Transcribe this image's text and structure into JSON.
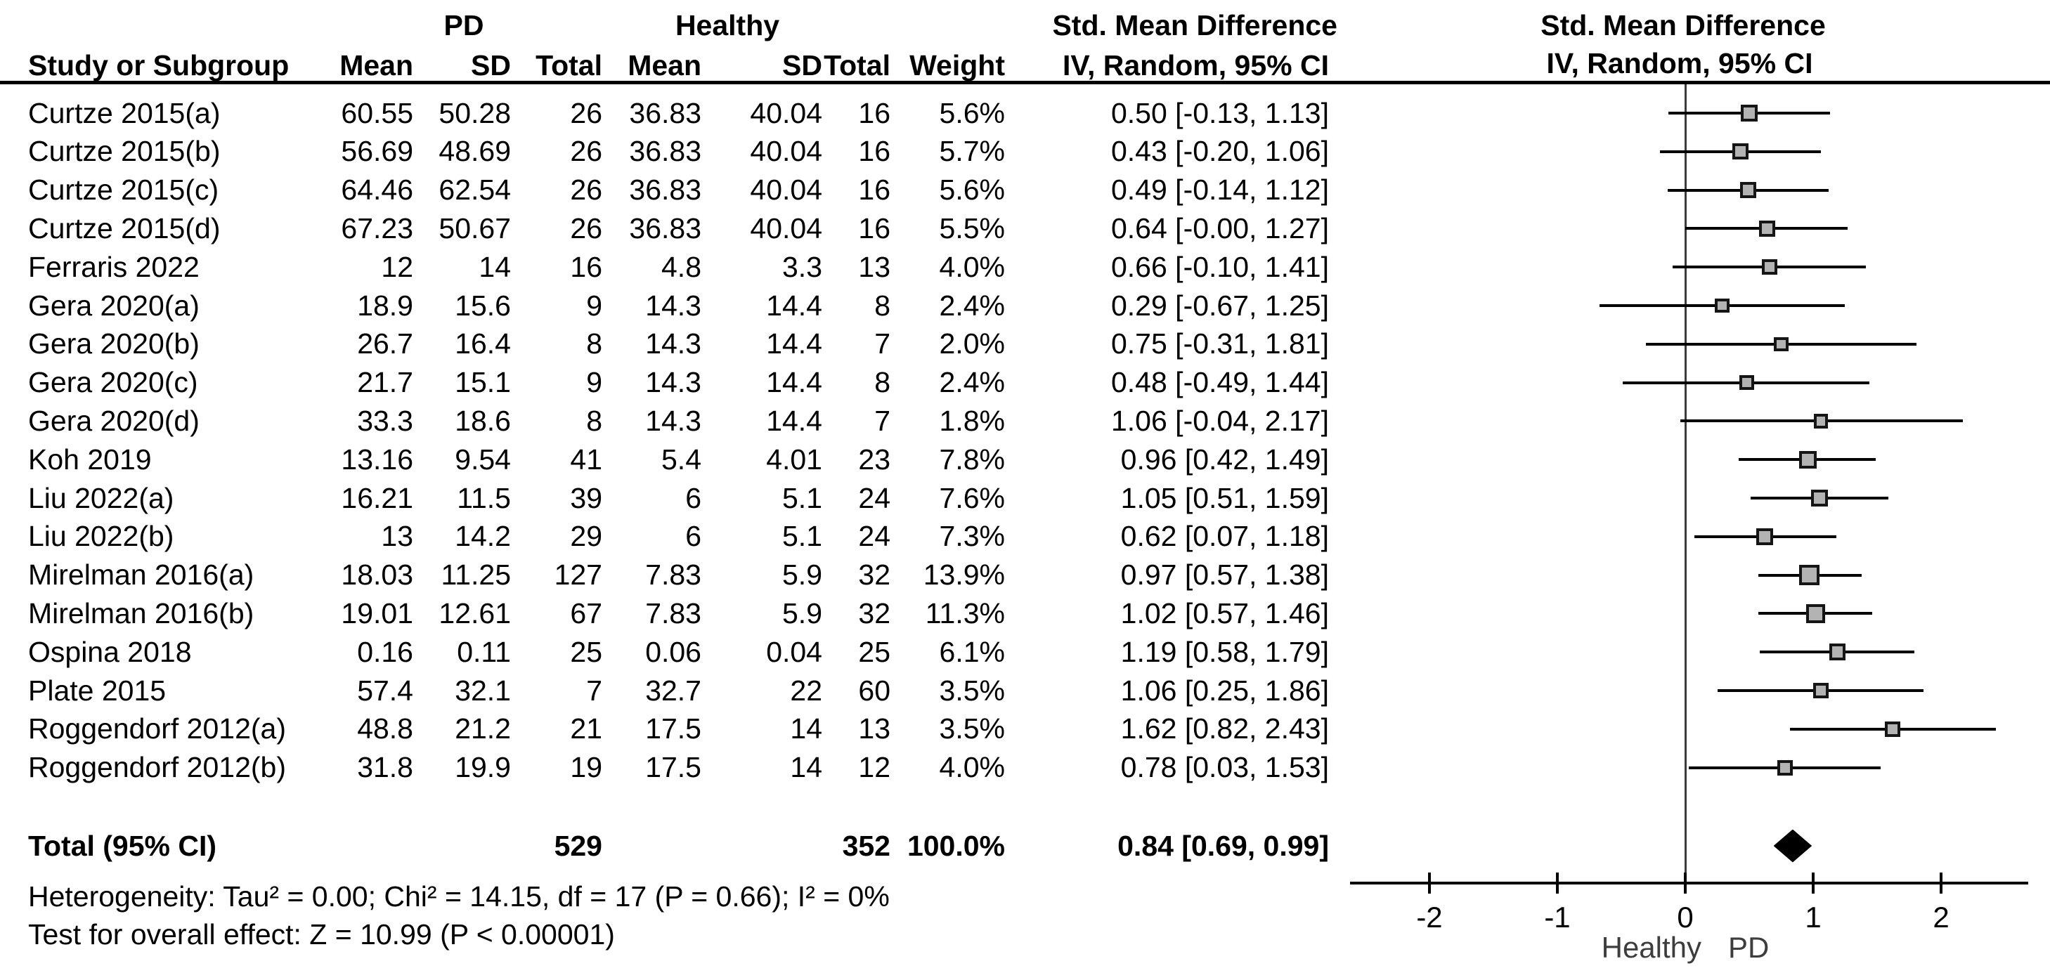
{
  "header": {
    "group_pd": "PD",
    "group_healthy": "Healthy",
    "smd_text_title": "Std. Mean Difference",
    "smd_text_sub": "IV, Random, 95% CI",
    "smd_plot_title": "Std. Mean Difference",
    "smd_plot_sub": "IV, Random, 95% CI",
    "col_study": "Study or Subgroup",
    "col_mean": "Mean",
    "col_sd": "SD",
    "col_total": "Total",
    "col_weight": "Weight"
  },
  "chart_data": {
    "type": "forest",
    "effect_measure": "Std. Mean Difference, IV, Random, 95% CI",
    "studies": [
      {
        "study": "Curtze 2015(a)",
        "pd_mean": "60.55",
        "pd_sd": "50.28",
        "pd_total": "26",
        "h_mean": "36.83",
        "h_sd": "40.04",
        "h_total": "16",
        "weight": "5.6%",
        "ci": "0.50 [-0.13, 1.13]",
        "smd": 0.5,
        "lo": -0.13,
        "hi": 1.13
      },
      {
        "study": "Curtze 2015(b)",
        "pd_mean": "56.69",
        "pd_sd": "48.69",
        "pd_total": "26",
        "h_mean": "36.83",
        "h_sd": "40.04",
        "h_total": "16",
        "weight": "5.7%",
        "ci": "0.43 [-0.20, 1.06]",
        "smd": 0.43,
        "lo": -0.2,
        "hi": 1.06
      },
      {
        "study": "Curtze 2015(c)",
        "pd_mean": "64.46",
        "pd_sd": "62.54",
        "pd_total": "26",
        "h_mean": "36.83",
        "h_sd": "40.04",
        "h_total": "16",
        "weight": "5.6%",
        "ci": "0.49 [-0.14, 1.12]",
        "smd": 0.49,
        "lo": -0.14,
        "hi": 1.12
      },
      {
        "study": "Curtze 2015(d)",
        "pd_mean": "67.23",
        "pd_sd": "50.67",
        "pd_total": "26",
        "h_mean": "36.83",
        "h_sd": "40.04",
        "h_total": "16",
        "weight": "5.5%",
        "ci": "0.64 [-0.00, 1.27]",
        "smd": 0.64,
        "lo": 0.0,
        "hi": 1.27
      },
      {
        "study": "Ferraris 2022",
        "pd_mean": "12",
        "pd_sd": "14",
        "pd_total": "16",
        "h_mean": "4.8",
        "h_sd": "3.3",
        "h_total": "13",
        "weight": "4.0%",
        "ci": "0.66 [-0.10, 1.41]",
        "smd": 0.66,
        "lo": -0.1,
        "hi": 1.41
      },
      {
        "study": "Gera 2020(a)",
        "pd_mean": "18.9",
        "pd_sd": "15.6",
        "pd_total": "9",
        "h_mean": "14.3",
        "h_sd": "14.4",
        "h_total": "8",
        "weight": "2.4%",
        "ci": "0.29 [-0.67, 1.25]",
        "smd": 0.29,
        "lo": -0.67,
        "hi": 1.25
      },
      {
        "study": "Gera 2020(b)",
        "pd_mean": "26.7",
        "pd_sd": "16.4",
        "pd_total": "8",
        "h_mean": "14.3",
        "h_sd": "14.4",
        "h_total": "7",
        "weight": "2.0%",
        "ci": "0.75 [-0.31, 1.81]",
        "smd": 0.75,
        "lo": -0.31,
        "hi": 1.81
      },
      {
        "study": "Gera 2020(c)",
        "pd_mean": "21.7",
        "pd_sd": "15.1",
        "pd_total": "9",
        "h_mean": "14.3",
        "h_sd": "14.4",
        "h_total": "8",
        "weight": "2.4%",
        "ci": "0.48 [-0.49, 1.44]",
        "smd": 0.48,
        "lo": -0.49,
        "hi": 1.44
      },
      {
        "study": "Gera 2020(d)",
        "pd_mean": "33.3",
        "pd_sd": "18.6",
        "pd_total": "8",
        "h_mean": "14.3",
        "h_sd": "14.4",
        "h_total": "7",
        "weight": "1.8%",
        "ci": "1.06 [-0.04, 2.17]",
        "smd": 1.06,
        "lo": -0.04,
        "hi": 2.17
      },
      {
        "study": "Koh 2019",
        "pd_mean": "13.16",
        "pd_sd": "9.54",
        "pd_total": "41",
        "h_mean": "5.4",
        "h_sd": "4.01",
        "h_total": "23",
        "weight": "7.8%",
        "ci": "0.96 [0.42, 1.49]",
        "smd": 0.96,
        "lo": 0.42,
        "hi": 1.49
      },
      {
        "study": "Liu 2022(a)",
        "pd_mean": "16.21",
        "pd_sd": "11.5",
        "pd_total": "39",
        "h_mean": "6",
        "h_sd": "5.1",
        "h_total": "24",
        "weight": "7.6%",
        "ci": "1.05 [0.51, 1.59]",
        "smd": 1.05,
        "lo": 0.51,
        "hi": 1.59
      },
      {
        "study": "Liu 2022(b)",
        "pd_mean": "13",
        "pd_sd": "14.2",
        "pd_total": "29",
        "h_mean": "6",
        "h_sd": "5.1",
        "h_total": "24",
        "weight": "7.3%",
        "ci": "0.62 [0.07, 1.18]",
        "smd": 0.62,
        "lo": 0.07,
        "hi": 1.18
      },
      {
        "study": "Mirelman 2016(a)",
        "pd_mean": "18.03",
        "pd_sd": "11.25",
        "pd_total": "127",
        "h_mean": "7.83",
        "h_sd": "5.9",
        "h_total": "32",
        "weight": "13.9%",
        "ci": "0.97 [0.57, 1.38]",
        "smd": 0.97,
        "lo": 0.57,
        "hi": 1.38
      },
      {
        "study": "Mirelman 2016(b)",
        "pd_mean": "19.01",
        "pd_sd": "12.61",
        "pd_total": "67",
        "h_mean": "7.83",
        "h_sd": "5.9",
        "h_total": "32",
        "weight": "11.3%",
        "ci": "1.02 [0.57, 1.46]",
        "smd": 1.02,
        "lo": 0.57,
        "hi": 1.46
      },
      {
        "study": "Ospina 2018",
        "pd_mean": "0.16",
        "pd_sd": "0.11",
        "pd_total": "25",
        "h_mean": "0.06",
        "h_sd": "0.04",
        "h_total": "25",
        "weight": "6.1%",
        "ci": "1.19 [0.58, 1.79]",
        "smd": 1.19,
        "lo": 0.58,
        "hi": 1.79
      },
      {
        "study": "Plate 2015",
        "pd_mean": "57.4",
        "pd_sd": "32.1",
        "pd_total": "7",
        "h_mean": "32.7",
        "h_sd": "22",
        "h_total": "60",
        "weight": "3.5%",
        "ci": "1.06 [0.25, 1.86]",
        "smd": 1.06,
        "lo": 0.25,
        "hi": 1.86
      },
      {
        "study": "Roggendorf 2012(a)",
        "pd_mean": "48.8",
        "pd_sd": "21.2",
        "pd_total": "21",
        "h_mean": "17.5",
        "h_sd": "14",
        "h_total": "13",
        "weight": "3.5%",
        "ci": "1.62 [0.82, 2.43]",
        "smd": 1.62,
        "lo": 0.82,
        "hi": 2.43
      },
      {
        "study": "Roggendorf 2012(b)",
        "pd_mean": "31.8",
        "pd_sd": "19.9",
        "pd_total": "19",
        "h_mean": "17.5",
        "h_sd": "14",
        "h_total": "12",
        "weight": "4.0%",
        "ci": "0.78 [0.03, 1.53]",
        "smd": 0.78,
        "lo": 0.03,
        "hi": 1.53
      }
    ],
    "total": {
      "label": "Total (95% CI)",
      "pd_total": "529",
      "h_total": "352",
      "weight": "100.0%",
      "ci": "0.84 [0.69, 0.99]",
      "smd": 0.84,
      "lo": 0.69,
      "hi": 0.99
    },
    "heterogeneity": "Heterogeneity: Tau² = 0.00; Chi² = 14.15, df = 17 (P = 0.66); I² = 0%",
    "overall_effect": "Test for overall effect: Z = 10.99 (P < 0.00001)",
    "axis": {
      "ticks": [
        "-2",
        "-1",
        "0",
        "1",
        "2"
      ],
      "tick_values": [
        -2,
        -1,
        0,
        1,
        2
      ],
      "min": -2.62,
      "max": 2.68,
      "label_left": "Healthy",
      "label_right": "PD"
    }
  }
}
